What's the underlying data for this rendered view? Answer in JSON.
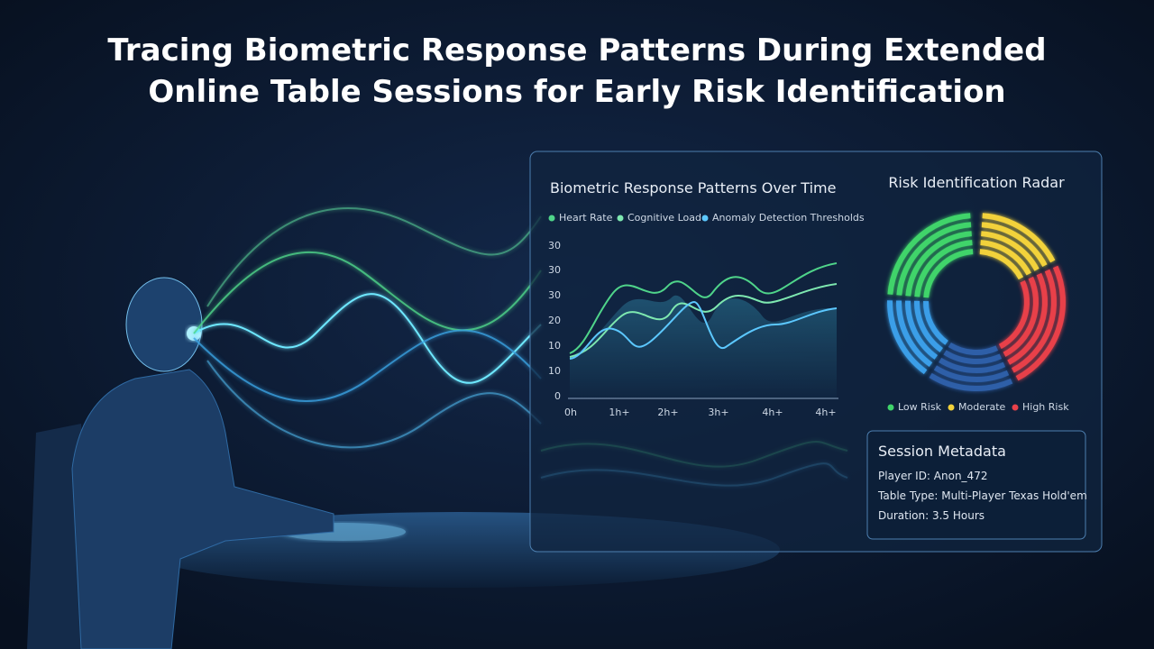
{
  "title_lines": [
    "Tracing Biometric Response Patterns During Extended",
    "Online Table Sessions for Early Risk Identification"
  ],
  "chart_panel": {
    "title": "Biometric Response Patterns Over Time",
    "legend": [
      "Heart Rate",
      "Cognitive Load",
      "Anomaly Detection Thresholds"
    ],
    "y_labels": [
      30,
      30,
      30,
      20,
      10,
      10,
      0
    ],
    "x_labels": [
      "0h",
      "1h+",
      "2h+",
      "3h+",
      "4h+",
      "4h+"
    ]
  },
  "radar": {
    "title": "Risk Identification Radar",
    "legend": [
      "Low Risk",
      "Moderate",
      "High Risk"
    ]
  },
  "metadata": {
    "title": "Session Metadata",
    "rows": [
      "Player ID: Anon_472",
      "Table Type: Multi-Player Texas Hold'em",
      "Duration: 3.5 Hours"
    ]
  }
}
